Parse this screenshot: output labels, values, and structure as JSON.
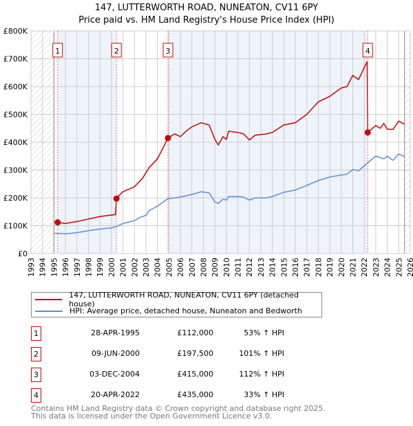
{
  "title": [
    "147, LUTTERWORTH ROAD, NUNEATON, CV11 6PY",
    "Price paid vs. HM Land Registry's House Price Index (HPI)"
  ],
  "colors": {
    "property": "#cc0000",
    "hpi": "#5b8fd4",
    "band": "#eef3fc"
  },
  "chart_data": {
    "type": "line",
    "xlim": [
      1993,
      2026
    ],
    "ylim": [
      0,
      800000
    ],
    "yticks": [
      0,
      100000,
      200000,
      300000,
      400000,
      500000,
      600000,
      700000,
      800000
    ],
    "ytick_labels": [
      "£0",
      "£100K",
      "£200K",
      "£300K",
      "£400K",
      "£500K",
      "£600K",
      "£700K",
      "£800K"
    ],
    "xticks": [
      1993,
      1994,
      1995,
      1996,
      1997,
      1998,
      1999,
      2000,
      2001,
      2002,
      2003,
      2004,
      2005,
      2006,
      2007,
      2008,
      2009,
      2010,
      2011,
      2012,
      2013,
      2014,
      2015,
      2016,
      2017,
      2018,
      2019,
      2020,
      2021,
      2022,
      2023,
      2024,
      2025,
      2026
    ],
    "data_range": [
      1995.0,
      2025.5
    ],
    "series": [
      {
        "name": "147, LUTTERWORTH ROAD, NUNEATON, CV11 6PY (detached house)",
        "x": [
          1995.32,
          1996,
          1997,
          1998,
          1999,
          2000.35,
          2000.44,
          2000.7,
          2001,
          2002,
          2002.7,
          2003.3,
          2004,
          2004.92,
          2005.5,
          2006,
          2006.5,
          2007,
          2007.8,
          2008.5,
          2009,
          2009.3,
          2009.7,
          2010,
          2010.2,
          2011,
          2011.5,
          2012,
          2012.5,
          2013.5,
          2014,
          2015,
          2016,
          2017,
          2018,
          2019,
          2020,
          2020.5,
          2021,
          2021.5,
          2022.25,
          2022.3,
          2023,
          2023.4,
          2023.7,
          2024,
          2024.5,
          2025,
          2025.5
        ],
        "y": [
          112000,
          108000,
          115000,
          124000,
          133000,
          140000,
          197500,
          210000,
          222000,
          240000,
          270000,
          310000,
          340000,
          415000,
          430000,
          420000,
          440000,
          455000,
          470000,
          462000,
          410000,
          390000,
          420000,
          410000,
          440000,
          435000,
          430000,
          408000,
          425000,
          430000,
          435000,
          462000,
          470000,
          500000,
          545000,
          565000,
          595000,
          600000,
          640000,
          625000,
          690000,
          435000,
          460000,
          450000,
          468000,
          447000,
          446000,
          476000,
          465000
        ]
      },
      {
        "name": "HPI: Average price, detached house, Nuneaton and Bedworth",
        "x": [
          1995,
          1996,
          1997,
          1998,
          1999,
          2000,
          2000.5,
          2001,
          2002,
          2002.5,
          2003,
          2003.3,
          2004,
          2004.9,
          2005.5,
          2006,
          2007,
          2007.8,
          2008.5,
          2009,
          2009.3,
          2009.7,
          2010,
          2010.2,
          2011,
          2011.5,
          2012,
          2012.5,
          2013.5,
          2014,
          2015,
          2016,
          2017,
          2018,
          2019,
          2020,
          2020.5,
          2021,
          2021.5,
          2022.3,
          2023,
          2023.4,
          2023.7,
          2024,
          2024.5,
          2025,
          2025.5
        ],
        "y": [
          73000,
          71000,
          75000,
          82000,
          88000,
          92000,
          98000,
          108000,
          118000,
          130000,
          137000,
          155000,
          170000,
          197000,
          200000,
          203000,
          212000,
          222000,
          218000,
          185000,
          180000,
          195000,
          192000,
          205000,
          205000,
          203000,
          192000,
          200000,
          200000,
          205000,
          220000,
          228000,
          245000,
          262000,
          275000,
          282000,
          285000,
          302000,
          297000,
          326000,
          350000,
          345000,
          340000,
          350000,
          335000,
          358000,
          348000
        ]
      }
    ],
    "sales": [
      {
        "label": "1",
        "x": 1995.32,
        "price": 112000,
        "date": "28-APR-1995",
        "price_label": "£112,000",
        "hpi": "53% ↑ HPI"
      },
      {
        "label": "2",
        "x": 2000.44,
        "price": 197500,
        "date": "09-JUN-2000",
        "price_label": "£197,500",
        "hpi": "101% ↑ HPI"
      },
      {
        "label": "3",
        "x": 2004.92,
        "price": 415000,
        "date": "03-DEC-2004",
        "price_label": "£415,000",
        "hpi": "112% ↑ HPI"
      },
      {
        "label": "4",
        "x": 2022.3,
        "price": 435000,
        "date": "20-APR-2022",
        "price_label": "£435,000",
        "hpi": "33% ↑ HPI"
      }
    ]
  },
  "legend": {
    "property": "147, LUTTERWORTH ROAD, NUNEATON, CV11 6PY (detached house)",
    "hpi": "HPI: Average price, detached house, Nuneaton and Bedworth"
  },
  "footer": [
    "Contains HM Land Registry data © Crown copyright and database right 2025.",
    "This data is licensed under the Open Government Licence v3.0."
  ]
}
